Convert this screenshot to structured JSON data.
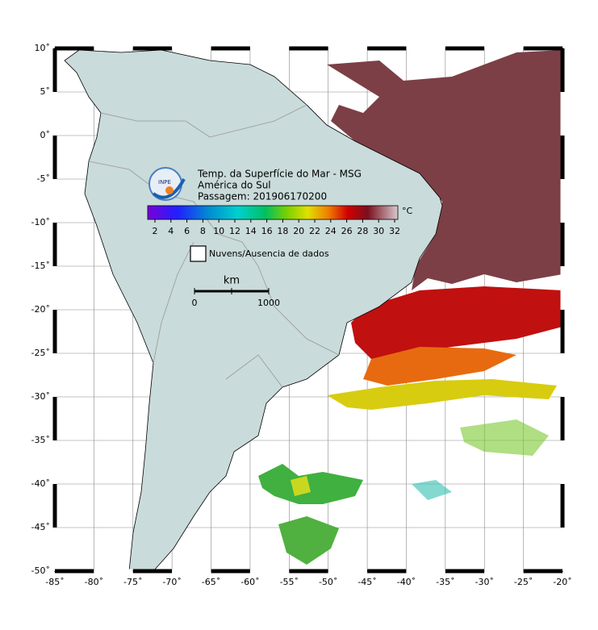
{
  "header": {
    "lines": [
      "Temp. da Superfície do Mar - MSG",
      "América do Sul",
      "Passagem: 201906170200"
    ],
    "logo": "INPE"
  },
  "colorbar": {
    "unit": "°C",
    "ticks": [
      2,
      4,
      6,
      8,
      10,
      12,
      14,
      16,
      18,
      20,
      22,
      24,
      26,
      28,
      30,
      32
    ]
  },
  "legend": "Nuvens/Ausencia de dados",
  "scale": {
    "unit": "km",
    "start": "0",
    "end": "1000"
  },
  "axes": {
    "lat_labels": [
      "10˚",
      "5˚",
      "0˚",
      "-5˚",
      "-10˚",
      "-15˚",
      "-20˚",
      "-25˚",
      "-30˚",
      "-35˚",
      "-40˚",
      "-45˚",
      "-50˚"
    ],
    "lon_labels": [
      "-85˚",
      "-80˚",
      "-75˚",
      "-70˚",
      "-65˚",
      "-60˚",
      "-55˚",
      "-50˚",
      "-45˚",
      "-40˚",
      "-35˚",
      "-30˚",
      "-25˚",
      "-20˚"
    ]
  }
}
